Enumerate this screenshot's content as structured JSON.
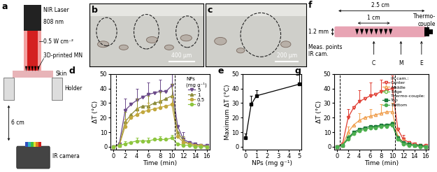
{
  "panels": {
    "a": {
      "label": "a",
      "laser": "NIR Laser",
      "wavelength": "808 nm",
      "power": "0.5 W cm⁻²",
      "mn": "3D-printed MN",
      "skin": "Skin",
      "holder": "Holder",
      "distance": "6 cm",
      "camera": "IR camera"
    },
    "b": {
      "label": "b",
      "scale_bar": "400 µm"
    },
    "c": {
      "label": "c",
      "scale_bar": "200 µm"
    },
    "f": {
      "label": "f",
      "length": "2.5 cm",
      "array": "1 cm",
      "thickness": "1.2 mm",
      "thermocouple": "Thermo-\ncouple",
      "points_label": "Meas. points\nIR cam.",
      "points": [
        "C",
        "M",
        "E"
      ]
    }
  },
  "chart_data": [
    {
      "type": "line",
      "title": "d",
      "x_label": "Time (min)",
      "y_label": "ΔT (°C)",
      "x": [
        0,
        1,
        2,
        3,
        4,
        5,
        6,
        7,
        8,
        9,
        10,
        11,
        12,
        13,
        14,
        15,
        16
      ],
      "xlim": [
        -0.5,
        16.5
      ],
      "xticks": [
        0,
        2,
        4,
        6,
        8,
        10,
        12,
        14,
        16
      ],
      "ylim": [
        -2,
        50
      ],
      "yticks": [
        0,
        10,
        20,
        30,
        40,
        50
      ],
      "vlines": [
        0.5,
        10.5
      ],
      "legend": "upper right",
      "legend_title": "NPs\n(mg g⁻¹)",
      "series": [
        {
          "name": "5",
          "color": "#6b4a8a",
          "marker": "triangle_down",
          "values": [
            0,
            2,
            25,
            29,
            32,
            34,
            36,
            37,
            38,
            38,
            42,
            14,
            5,
            3,
            2,
            1,
            1
          ],
          "errors": [
            null,
            null,
            8,
            null,
            8,
            null,
            8,
            null,
            8,
            null,
            9,
            null,
            5,
            null,
            null,
            null,
            null
          ]
        },
        {
          "name": "1",
          "color": "#8c8c3a",
          "marker": "triangle_up",
          "values": [
            0,
            1,
            17,
            22,
            26,
            28,
            28,
            30,
            31,
            33,
            35,
            10,
            4,
            2,
            1,
            1,
            0
          ],
          "errors": [
            null,
            null,
            7,
            null,
            7,
            null,
            7,
            null,
            7,
            null,
            8,
            null,
            3,
            null,
            null,
            null,
            null
          ]
        },
        {
          "name": "0.5",
          "color": "#c2a83e",
          "marker": "circle",
          "values": [
            0,
            1,
            14,
            20,
            22,
            24,
            25,
            26,
            27,
            28,
            29,
            7,
            3,
            2,
            1,
            1,
            0
          ],
          "errors": [
            null,
            null,
            5,
            null,
            5,
            null,
            5,
            null,
            5,
            null,
            6,
            null,
            2,
            null,
            null,
            null,
            null
          ]
        },
        {
          "name": "0",
          "color": "#8dc63f",
          "marker": "circle",
          "values": [
            0,
            1,
            2,
            3,
            4,
            4,
            4,
            5,
            5,
            5,
            6,
            2,
            1,
            1,
            0,
            0,
            0
          ],
          "errors": [
            null,
            null,
            2,
            null,
            2,
            null,
            2,
            null,
            2,
            null,
            2,
            null,
            1,
            null,
            null,
            null,
            null
          ]
        }
      ]
    },
    {
      "type": "line",
      "title": "e",
      "x_label": "NPs (mg g⁻¹)",
      "y_label": "Maximum ΔT (°C)",
      "x": [
        0,
        0.5,
        1,
        5
      ],
      "values": [
        6,
        29,
        35,
        43
      ],
      "errors": [
        3,
        6,
        4,
        8
      ],
      "color": "#000000",
      "marker": "square",
      "xlim": [
        -0.3,
        5.2
      ],
      "xticks": [
        0,
        1,
        2,
        3,
        4,
        5
      ],
      "ylim": [
        -2,
        50
      ],
      "yticks": [
        0,
        10,
        20,
        30,
        40,
        50
      ]
    },
    {
      "type": "line",
      "title": "g",
      "x_label": "Time (min)",
      "y_label": "ΔT (°C)",
      "x": [
        0,
        1,
        2,
        3,
        4,
        5,
        6,
        7,
        8,
        9,
        10,
        11,
        12,
        13,
        14,
        15,
        16
      ],
      "xlim": [
        -0.5,
        16.5
      ],
      "xticks": [
        0,
        2,
        4,
        6,
        8,
        10,
        12,
        14,
        16
      ],
      "ylim": [
        -2,
        50
      ],
      "yticks": [
        0,
        10,
        20,
        30,
        40,
        50
      ],
      "vlines": [
        0.5,
        10.5
      ],
      "legend": "upper right",
      "legend_groups": [
        {
          "title": "IR cam.:",
          "series": [
            "Center",
            "Middle",
            "Edge"
          ]
        },
        {
          "title": "Thermo-couple:",
          "series": [
            "Top",
            "Bottom"
          ]
        }
      ],
      "series": [
        {
          "name": "Center",
          "color": "#e03c31",
          "marker": "open_triangle_down",
          "values": [
            0,
            2,
            20,
            27,
            31,
            33,
            35,
            36,
            38,
            39,
            40,
            12,
            5,
            3,
            2,
            1,
            1
          ],
          "errors": [
            null,
            null,
            6,
            null,
            8,
            null,
            9,
            null,
            8,
            null,
            9,
            null,
            3,
            null,
            null,
            null,
            null
          ]
        },
        {
          "name": "Middle",
          "color": "#f0a050",
          "marker": "open_triangle_up",
          "values": [
            0,
            1,
            10,
            15,
            18,
            20,
            21,
            22,
            23,
            24,
            24,
            7,
            3,
            2,
            1,
            1,
            0
          ],
          "errors": [
            null,
            null,
            4,
            null,
            5,
            null,
            5,
            null,
            6,
            null,
            6,
            null,
            2,
            null,
            null,
            null,
            null
          ]
        },
        {
          "name": "Edge",
          "color": "#6cc24a",
          "marker": "open_circle",
          "values": [
            0,
            1,
            6,
            9,
            11,
            12,
            13,
            14,
            14,
            15,
            15,
            5,
            2,
            1,
            1,
            0,
            0
          ],
          "errors": [
            null,
            null,
            2,
            null,
            2,
            null,
            2,
            null,
            2,
            null,
            2,
            null,
            1,
            null,
            null,
            null,
            null
          ]
        },
        {
          "name": "Top",
          "color": "#1a7a3a",
          "marker": "square",
          "values": [
            0,
            1,
            6,
            10,
            12,
            13,
            14,
            14,
            15,
            15,
            16,
            6,
            3,
            2,
            1,
            1,
            0
          ]
        },
        {
          "name": "Bottom",
          "color": "#4caf50",
          "marker": "circle",
          "values": [
            0,
            1,
            5,
            9,
            11,
            12,
            13,
            13,
            14,
            14,
            15,
            5,
            2,
            1,
            1,
            0,
            0
          ]
        }
      ]
    }
  ]
}
